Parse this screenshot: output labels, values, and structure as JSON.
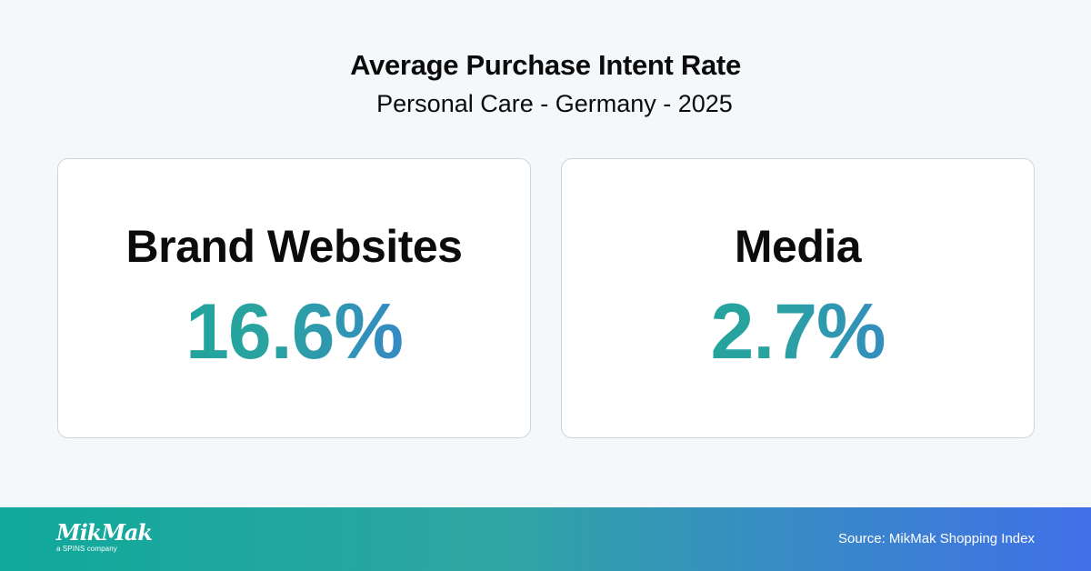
{
  "header": {
    "title": "Average Purchase Intent Rate",
    "subtitle": "Personal Care - Germany - 2025"
  },
  "cards": [
    {
      "label": "Brand Websites",
      "value": "16.6%"
    },
    {
      "label": "Media",
      "value": "2.7%"
    }
  ],
  "footer": {
    "logo_text": "MikMak",
    "logo_subtext": "a SPINS company",
    "source": "Source: MikMak Shopping Index"
  },
  "colors": {
    "background": "#f5f8fb",
    "accent_teal": "#17a39a",
    "accent_blue": "#3f72e6"
  }
}
